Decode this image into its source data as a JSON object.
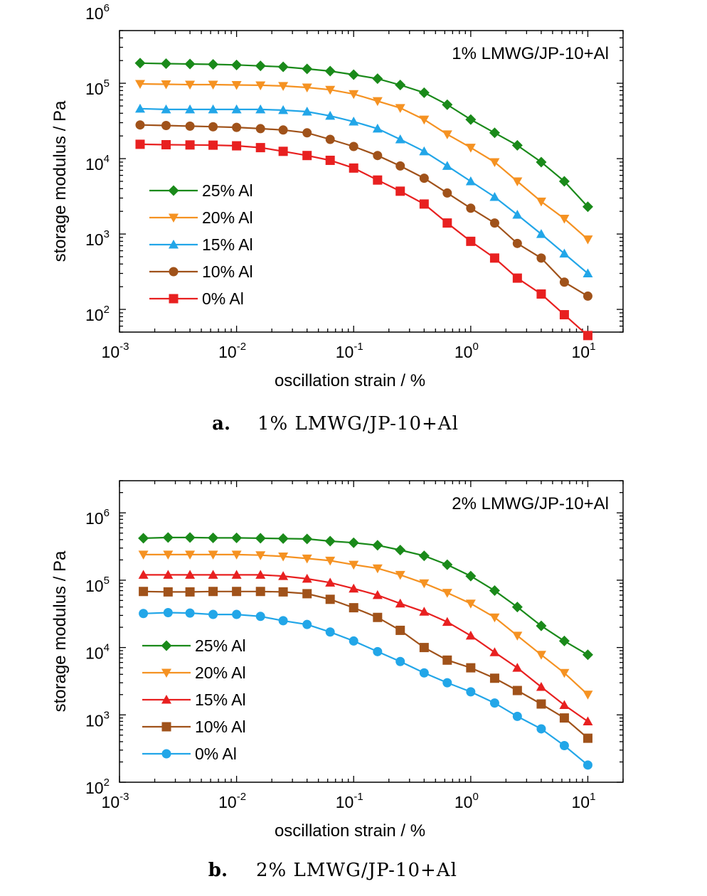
{
  "chart_data": [
    {
      "type": "line",
      "title": "1% LMWG/JP-10+Al",
      "xlabel": "oscillation strain / %",
      "ylabel": "storage modulus / Pa",
      "xscale": "log",
      "yscale": "log",
      "xlim": [
        0.001,
        20
      ],
      "ylim": [
        50,
        500000
      ],
      "x_ticks": [
        {
          "base": "10",
          "exp": "-3"
        },
        {
          "base": "10",
          "exp": "-2"
        },
        {
          "base": "10",
          "exp": "-1"
        },
        {
          "base": "10",
          "exp": "0"
        },
        {
          "base": "10",
          "exp": "1"
        }
      ],
      "y_ticks": [
        {
          "base": "10",
          "exp": "2"
        },
        {
          "base": "10",
          "exp": "3"
        },
        {
          "base": "10",
          "exp": "4"
        },
        {
          "base": "10",
          "exp": "5"
        },
        {
          "base": "10",
          "exp": "6"
        }
      ],
      "legend_position": "center-left",
      "caption": {
        "label": "a.",
        "text": "1% LMWG/JP-10+Al"
      },
      "x": [
        0.0015,
        0.0025,
        0.004,
        0.0063,
        0.01,
        0.016,
        0.025,
        0.04,
        0.063,
        0.1,
        0.16,
        0.25,
        0.4,
        0.63,
        1.0,
        1.6,
        2.5,
        4.0,
        6.3,
        10.0
      ],
      "series": [
        {
          "name": "25% Al",
          "color": "#1a8a1a",
          "marker": "diamond",
          "values": [
            185000,
            182000,
            180000,
            178000,
            175000,
            170000,
            165000,
            155000,
            145000,
            130000,
            115000,
            95000,
            75000,
            52000,
            33000,
            22000,
            15000,
            9000,
            5000,
            2300
          ]
        },
        {
          "name": "20% Al",
          "color": "#f59222",
          "marker": "triangle-down",
          "values": [
            98000,
            97000,
            96000,
            96000,
            95000,
            94000,
            92000,
            88000,
            82000,
            72000,
            58000,
            47000,
            33000,
            21000,
            14000,
            9000,
            5000,
            2700,
            1600,
            850
          ]
        },
        {
          "name": "15% Al",
          "color": "#22a6e8",
          "marker": "triangle-up",
          "values": [
            46000,
            45000,
            45000,
            45000,
            45000,
            45000,
            44000,
            42000,
            37000,
            31000,
            25000,
            18000,
            12500,
            8000,
            5000,
            3100,
            1800,
            1000,
            550,
            300
          ]
        },
        {
          "name": "10% Al",
          "color": "#a0521a",
          "marker": "circle",
          "values": [
            28000,
            27500,
            27000,
            26500,
            26000,
            25000,
            24000,
            22000,
            18000,
            14500,
            11000,
            8000,
            5500,
            3500,
            2200,
            1400,
            750,
            480,
            230,
            150
          ]
        },
        {
          "name": "0%  Al",
          "color": "#e82020",
          "marker": "square",
          "values": [
            15500,
            15300,
            15200,
            15100,
            14800,
            14000,
            12500,
            11000,
            9500,
            7500,
            5200,
            3700,
            2500,
            1400,
            800,
            480,
            260,
            160,
            85,
            45
          ]
        }
      ]
    },
    {
      "type": "line",
      "title": "2% LMWG/JP-10+Al",
      "xlabel": "oscillation strain / %",
      "ylabel": "storage modulus / Pa",
      "xscale": "log",
      "yscale": "log",
      "xlim": [
        0.001,
        20
      ],
      "ylim": [
        100,
        3000000
      ],
      "x_ticks": [
        {
          "base": "10",
          "exp": "-3"
        },
        {
          "base": "10",
          "exp": "-2"
        },
        {
          "base": "10",
          "exp": "-1"
        },
        {
          "base": "10",
          "exp": "0"
        },
        {
          "base": "10",
          "exp": "1"
        }
      ],
      "y_ticks": [
        {
          "base": "10",
          "exp": "2"
        },
        {
          "base": "10",
          "exp": "3"
        },
        {
          "base": "10",
          "exp": "4"
        },
        {
          "base": "10",
          "exp": "5"
        },
        {
          "base": "10",
          "exp": "6"
        }
      ],
      "legend_position": "lower-left",
      "caption": {
        "label": "b.",
        "text": "2% LMWG/JP-10+Al"
      },
      "x": [
        0.0016,
        0.0026,
        0.004,
        0.0063,
        0.01,
        0.016,
        0.025,
        0.04,
        0.063,
        0.1,
        0.16,
        0.25,
        0.4,
        0.63,
        1.0,
        1.6,
        2.5,
        4.0,
        6.3,
        10.0
      ],
      "series": [
        {
          "name": "25% Al",
          "color": "#1a8a1a",
          "marker": "diamond",
          "values": [
            420000,
            430000,
            430000,
            425000,
            425000,
            420000,
            415000,
            410000,
            380000,
            360000,
            330000,
            280000,
            230000,
            170000,
            115000,
            70000,
            40000,
            21000,
            12500,
            7800
          ]
        },
        {
          "name": "20% Al",
          "color": "#f59222",
          "marker": "triangle-down",
          "values": [
            240000,
            240000,
            240000,
            240000,
            240000,
            235000,
            225000,
            210000,
            195000,
            170000,
            150000,
            120000,
            90000,
            65000,
            45000,
            28000,
            15000,
            7800,
            4200,
            2000
          ]
        },
        {
          "name": "15% Al",
          "color": "#e82020",
          "marker": "triangle-up",
          "values": [
            120000,
            120000,
            120000,
            120000,
            120000,
            120000,
            115000,
            105000,
            92000,
            75000,
            60000,
            45000,
            34000,
            24000,
            15000,
            8500,
            5000,
            2600,
            1400,
            800
          ]
        },
        {
          "name": "10% Al",
          "color": "#a0521a",
          "marker": "square",
          "values": [
            68000,
            67000,
            67000,
            68000,
            68000,
            68000,
            67000,
            63000,
            52000,
            39000,
            28000,
            18000,
            10000,
            6500,
            5000,
            3500,
            2300,
            1450,
            900,
            450
          ]
        },
        {
          "name": "0%  Al",
          "color": "#22a6e8",
          "marker": "circle",
          "values": [
            32000,
            33000,
            32500,
            31000,
            31000,
            29000,
            25000,
            22000,
            17000,
            12500,
            8700,
            6200,
            4200,
            3000,
            2200,
            1500,
            950,
            620,
            350,
            180
          ]
        }
      ]
    }
  ]
}
